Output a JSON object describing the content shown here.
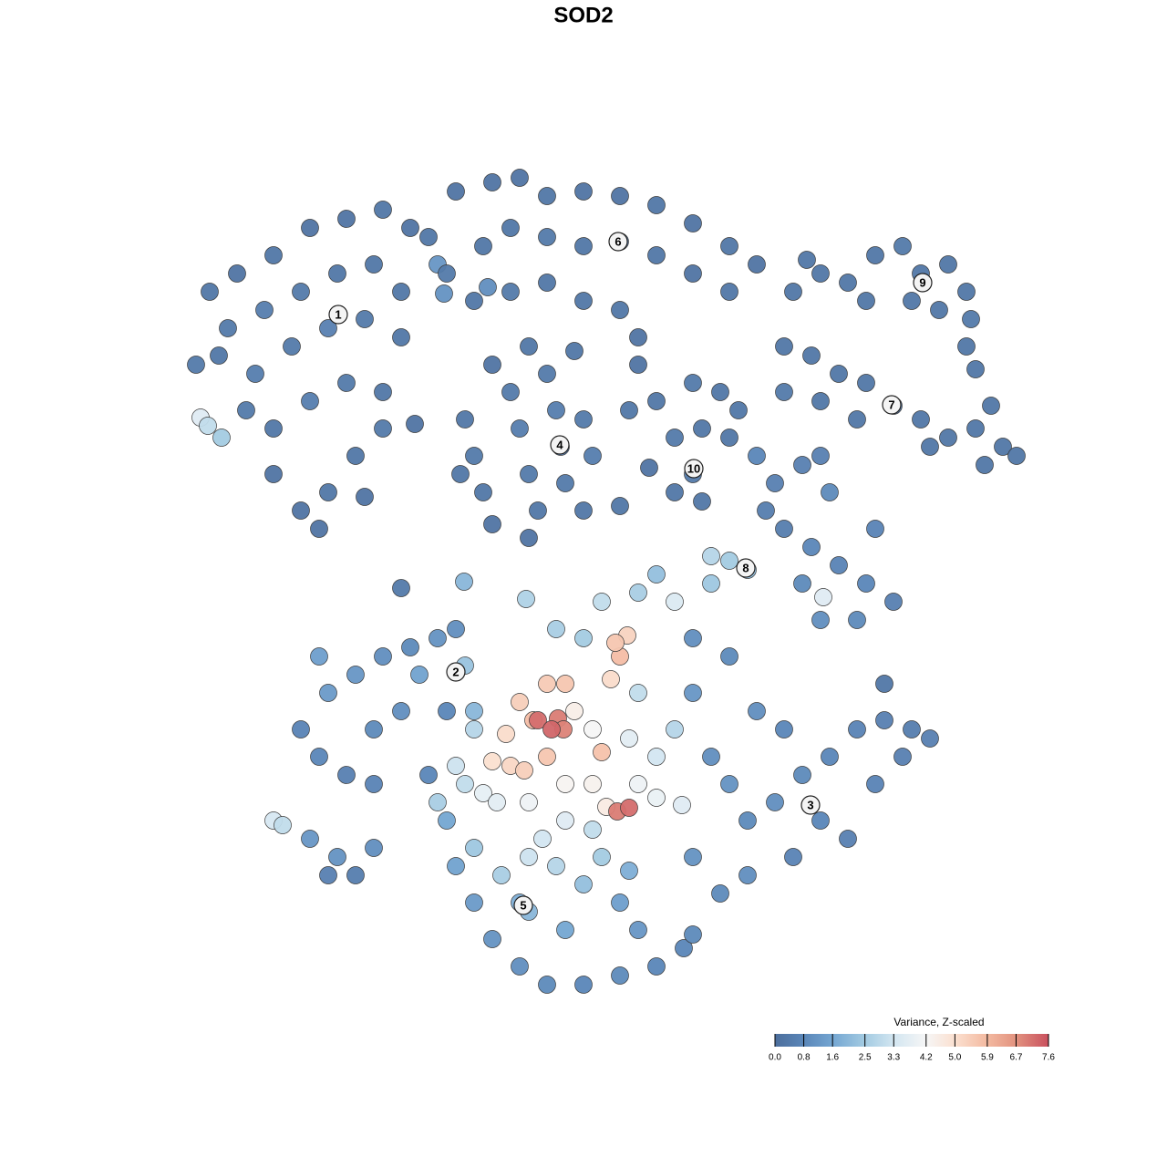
{
  "chart_data": {
    "type": "scatter",
    "title": "SOD2",
    "xlim": [
      0,
      1280
    ],
    "ylim": [
      1280,
      0
    ],
    "x": [
      230,
      260,
      300,
      340,
      380,
      420,
      450,
      250,
      290,
      330,
      370,
      410,
      440,
      215,
      240,
      280,
      320,
      360,
      400,
      440,
      270,
      300,
      340,
      380,
      420,
      300,
      330,
      360,
      390,
      420,
      350,
      400,
      455,
      480,
      487,
      220,
      228,
      243,
      470,
      500,
      540,
      570,
      600,
      640,
      680,
      720,
      760,
      800,
      830,
      490,
      530,
      560,
      600,
      640,
      680,
      720,
      760,
      800,
      520,
      560,
      600,
      640,
      680,
      700,
      700,
      580,
      630,
      540,
      535,
      510,
      520,
      530,
      540,
      560,
      570,
      580,
      590,
      600,
      610,
      615,
      620,
      640,
      650,
      640,
      580,
      505,
      690,
      720,
      760,
      790,
      810,
      740,
      770,
      800,
      760,
      740,
      770,
      712,
      680,
      870,
      900,
      930,
      960,
      990,
      1010,
      1040,
      1060,
      1065,
      1060,
      1070,
      950,
      1000,
      1030,
      885,
      860,
      890,
      920,
      950,
      980,
      1010,
      1040,
      1070,
      1100,
      1115,
      1080,
      1020,
      860,
      900,
      940,
      1087,
      830,
      850,
      840,
      860,
      880,
      900,
      910,
      890,
      920,
      950,
      980,
      940,
      900,
      880,
      960,
      820,
      780,
      800,
      903,
      330,
      350,
      380,
      410,
      360,
      390,
      420,
      450,
      480,
      500,
      510,
      460,
      440,
      410,
      350,
      300,
      310,
      340,
      370,
      360,
      390,
      410,
      470,
      490,
      520,
      577,
      509,
      440,
      780,
      800,
      820,
      850,
      880,
      910,
      940,
      970,
      1000,
      1020,
      900,
      930,
      870,
      820,
      790,
      960,
      990,
      860,
      830,
      760,
      970,
      490,
      500,
      520,
      540,
      570,
      600,
      640,
      680,
      720,
      750,
      760,
      550,
      580,
      610,
      640,
      680,
      700,
      620,
      580,
      520,
      480,
      660,
      690,
      570,
      585,
      570,
      600,
      620,
      680,
      688,
      675,
      670,
      660,
      560,
      575,
      540,
      555,
      600,
      650,
      665,
      620,
      580,
      700,
      720,
      630,
      650,
      690,
      720,
      740,
      700,
      640,
      610,
      660,
      700,
      740,
      720,
      760,
      800,
      760,
      530,
      545,
      510,
      620,
      595,
      650,
      520,
      500,
      780,
      748,
      590,
      612,
      618,
      605,
      677,
      690
    ],
    "y": [
      320,
      300,
      280,
      250,
      240,
      230,
      250,
      360,
      340,
      320,
      300,
      290,
      320,
      400,
      390,
      410,
      380,
      360,
      350,
      370,
      450,
      470,
      440,
      420,
      430,
      520,
      560,
      540,
      500,
      470,
      580,
      545,
      465,
      290,
      322,
      458,
      467,
      480,
      260,
      210,
      200,
      195,
      215,
      210,
      215,
      225,
      245,
      270,
      290,
      300,
      270,
      250,
      260,
      270,
      265,
      280,
      300,
      320,
      330,
      320,
      310,
      330,
      340,
      370,
      400,
      380,
      385,
      400,
      315,
      460,
      500,
      540,
      575,
      430,
      470,
      520,
      560,
      410,
      450,
      490,
      530,
      460,
      500,
      560,
      590,
      520,
      450,
      440,
      420,
      430,
      450,
      480,
      470,
      480,
      520,
      540,
      550,
      513,
      555,
      320,
      300,
      310,
      280,
      270,
      300,
      290,
      320,
      350,
      380,
      405,
      330,
      330,
      340,
      285,
      380,
      390,
      410,
      420,
      445,
      460,
      480,
      470,
      490,
      500,
      510,
      490,
      430,
      440,
      460,
      445,
      500,
      530,
      560,
      580,
      510,
      500,
      540,
      600,
      620,
      640,
      660,
      680,
      680,
      640,
      580,
      625,
      610,
      615,
      655,
      800,
      830,
      850,
      860,
      760,
      740,
      720,
      710,
      700,
      690,
      730,
      740,
      780,
      800,
      720,
      900,
      905,
      920,
      940,
      960,
      960,
      930,
      850,
      780,
      780,
      657,
      638,
      645,
      830,
      860,
      900,
      880,
      850,
      830,
      800,
      790,
      800,
      810,
      900,
      920,
      940,
      960,
      980,
      860,
      830,
      800,
      780,
      940,
      750,
      900,
      950,
      990,
      1030,
      1060,
      1080,
      1080,
      1070,
      1060,
      1040,
      1025,
      960,
      940,
      950,
      970,
      990,
      1020,
      1020,
      1000,
      930,
      880,
      940,
      955,
      990,
      790,
      770,
      750,
      750,
      720,
      697,
      705,
      745,
      825,
      840,
      845,
      835,
      805,
      830,
      860,
      885,
      860,
      880,
      860,
      875,
      780,
      800,
      810,
      830,
      800,
      760,
      700,
      690,
      660,
      650,
      660,
      630,
      700,
      720,
      760,
      870,
      880,
      860,
      900,
      920,
      910,
      800,
      840,
      640,
      883,
      790,
      788,
      800,
      800,
      890,
      886
    ],
    "values": [
      0.3,
      0.2,
      0.3,
      0.2,
      0.2,
      0.3,
      0.2,
      0.4,
      0.5,
      0.4,
      0.3,
      0.3,
      0.3,
      0.4,
      0.3,
      0.5,
      0.4,
      0.6,
      0.4,
      0.3,
      0.4,
      0.3,
      0.5,
      0.4,
      0.3,
      0.2,
      0.2,
      0.3,
      0.3,
      0.4,
      0.2,
      0.2,
      0.2,
      1.2,
      1.1,
      3.6,
      3.0,
      2.5,
      0.3,
      0.2,
      0.2,
      0.2,
      0.3,
      0.2,
      0.2,
      0.3,
      0.2,
      0.3,
      0.2,
      0.4,
      0.3,
      0.3,
      0.4,
      0.3,
      0.3,
      0.3,
      0.2,
      0.3,
      0.3,
      0.4,
      0.3,
      0.3,
      0.3,
      0.2,
      0.2,
      0.3,
      0.3,
      0.2,
      1.0,
      0.3,
      0.4,
      0.3,
      0.2,
      0.4,
      0.5,
      0.4,
      0.3,
      0.4,
      0.5,
      0.6,
      0.4,
      0.4,
      0.5,
      0.3,
      0.2,
      0.3,
      0.3,
      0.3,
      0.4,
      0.3,
      0.3,
      0.4,
      0.3,
      0.3,
      0.4,
      0.3,
      0.3,
      0.2,
      0.3,
      0.3,
      0.3,
      0.3,
      0.3,
      0.4,
      0.3,
      0.3,
      0.3,
      0.4,
      0.3,
      0.3,
      0.3,
      0.3,
      0.3,
      0.3,
      0.3,
      0.3,
      0.3,
      0.3,
      0.3,
      0.3,
      0.3,
      0.3,
      0.3,
      0.3,
      0.3,
      0.3,
      0.4,
      0.3,
      0.3,
      0.3,
      0.8,
      0.6,
      0.5,
      0.5,
      0.6,
      0.6,
      0.9,
      0.8,
      0.7,
      0.8,
      0.6,
      0.9,
      1.0,
      0.9,
      0.7,
      2.2,
      2.8,
      2.5,
      3.6,
      0.7,
      0.8,
      0.6,
      0.7,
      1.3,
      1.2,
      1.0,
      0.9,
      1.1,
      1.0,
      2.3,
      1.5,
      1.0,
      0.9,
      1.4,
      3.4,
      3.0,
      1.2,
      1.1,
      0.6,
      0.5,
      1.0,
      0.8,
      0.8,
      2.0,
      2.7,
      2.0,
      0.4,
      1.0,
      1.1,
      0.9,
      1.0,
      0.9,
      0.8,
      0.7,
      0.6,
      0.5,
      0.6,
      0.8,
      0.6,
      0.7,
      1.0,
      0.9,
      0.7,
      0.6,
      0.8,
      1.0,
      1.1,
      0.3,
      1.6,
      1.5,
      1.3,
      1.1,
      1.0,
      0.9,
      0.8,
      0.9,
      0.8,
      0.8,
      0.9,
      2.6,
      3.2,
      2.8,
      2.2,
      1.4,
      1.2,
      1.6,
      2.0,
      2.4,
      2.6,
      2.5,
      1.8,
      1.8,
      5.8,
      5.4,
      5.5,
      5.6,
      5.8,
      5.3,
      5.6,
      5.1,
      5.7,
      5.2,
      5.4,
      5.0,
      5.1,
      5.6,
      4.4,
      4.6,
      4.3,
      4.0,
      4.0,
      3.9,
      4.5,
      4.2,
      3.7,
      3.3,
      2.8,
      3.0,
      2.5,
      2.6,
      3.0,
      2.6,
      3.5,
      2.2,
      1.0,
      0.9,
      1.2,
      3.8,
      3.7,
      3.0,
      3.6,
      3.3,
      3.0,
      2.8,
      3.2,
      2.4,
      3.6,
      7.2,
      7.0,
      6.9,
      7.3,
      7.0,
      7.2
    ],
    "annotations": [
      {
        "text": "1",
        "x": 371,
        "y": 345
      },
      {
        "text": "6",
        "x": 678,
        "y": 265
      },
      {
        "text": "9",
        "x": 1012,
        "y": 310
      },
      {
        "text": "4",
        "x": 614,
        "y": 488
      },
      {
        "text": "10",
        "x": 761,
        "y": 514
      },
      {
        "text": "7",
        "x": 978,
        "y": 444
      },
      {
        "text": "8",
        "x": 818,
        "y": 623
      },
      {
        "text": "2",
        "x": 500,
        "y": 737
      },
      {
        "text": "3",
        "x": 889,
        "y": 883
      },
      {
        "text": "5",
        "x": 574,
        "y": 993
      }
    ],
    "colorbar": {
      "title": "Variance, Z-scaled",
      "lim": [
        0,
        7.6
      ],
      "ticks": [
        {
          "value": 0,
          "label": "0.0"
        },
        0.8,
        1.6,
        2.5,
        3.3,
        4.2,
        {
          "value": 5,
          "label": "5.0"
        },
        5.9,
        6.7,
        7.6
      ],
      "colors": [
        "#4c6e9c",
        "#5a86b8",
        "#74a6d2",
        "#a3cbe2",
        "#d3e6f1",
        "#f6f6f6",
        "#fbe0d0",
        "#f3b9a0",
        "#e2927f",
        "#c9505e"
      ]
    }
  }
}
